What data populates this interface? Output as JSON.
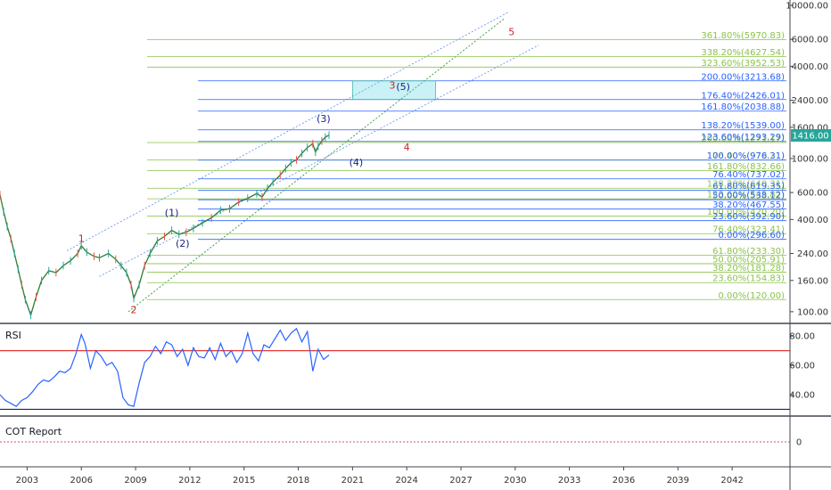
{
  "chart_data": [
    {
      "type": "line",
      "scale": "log",
      "ylim": [
        85,
        10000
      ],
      "xlim": [
        2001.5,
        2045.2
      ],
      "x_ticks": [
        "2003",
        "2006",
        "2009",
        "2012",
        "2015",
        "2018",
        "2021",
        "2024",
        "2027",
        "2030",
        "2033",
        "2036",
        "2039",
        "2042"
      ],
      "x_tick_values": [
        2003,
        2006,
        2009,
        2012,
        2015,
        2018,
        2021,
        2024,
        2027,
        2030,
        2033,
        2036,
        2039,
        2042
      ],
      "y_ticks": [
        "10000.00",
        "6000.00",
        "4000.00",
        "2400.00",
        "1600.00",
        "1000.00",
        "600.00",
        "400.00",
        "240.00",
        "160.00",
        "100.00"
      ],
      "y_tick_values": [
        10000,
        6000,
        4000,
        2400,
        1600,
        1000,
        600,
        400,
        240,
        160,
        100
      ],
      "last_price": {
        "label": "1416.00",
        "value": 1416,
        "color": "#26a69a"
      },
      "series": [
        {
          "x": [
            2001.5,
            2001.7,
            2001.9,
            2002.1,
            2002.3,
            2002.5,
            2002.7,
            2002.9,
            2003.2,
            2003.5,
            2003.8,
            2004.2,
            2004.6,
            2005.0,
            2005.4,
            2005.8,
            2006.0,
            2006.3,
            2006.7,
            2007.0,
            2007.5,
            2007.9,
            2008.2,
            2008.5,
            2008.75,
            2008.9,
            2009.2,
            2009.5,
            2009.8,
            2010.2,
            2010.6,
            2011.0,
            2011.4,
            2011.8,
            2012.2,
            2012.7,
            2013.2,
            2013.7,
            2014.2,
            2014.7,
            2015.2,
            2015.7,
            2016.0,
            2016.3,
            2016.6,
            2017.0,
            2017.3,
            2017.6,
            2017.9,
            2018.2,
            2018.5,
            2018.8,
            2018.95,
            2019.1,
            2019.3,
            2019.5,
            2019.7
          ],
          "values": [
            580,
            450,
            360,
            300,
            240,
            190,
            150,
            120,
            95,
            125,
            160,
            185,
            180,
            200,
            215,
            240,
            270,
            245,
            230,
            225,
            240,
            220,
            200,
            180,
            150,
            122,
            150,
            200,
            240,
            290,
            310,
            340,
            320,
            330,
            350,
            380,
            410,
            460,
            470,
            520,
            550,
            590,
            560,
            640,
            700,
            780,
            860,
            940,
            980,
            1080,
            1180,
            1250,
            1100,
            1200,
            1300,
            1380,
            1420
          ],
          "color": "#2e7d32"
        }
      ],
      "fib_levels_left": [
        {
          "label": "361.80%(5970.83)",
          "value": 5970.83,
          "color": "#8bc34a"
        },
        {
          "label": "338.20%(4627.54)",
          "value": 4627.54,
          "color": "#8bc34a"
        },
        {
          "label": "323.60%(3952.53)",
          "value": 3952.53,
          "color": "#8bc34a"
        },
        {
          "label": "200.00%(1271.17)",
          "value": 1271.17,
          "color": "#8bc34a"
        },
        {
          "label": "176.40%(979.21)",
          "value": 979.21,
          "color": "#8bc34a"
        },
        {
          "label": "161.80%(832.66)",
          "value": 832.66,
          "color": "#8bc34a"
        },
        {
          "label": "138.20%(640.31)",
          "value": 640.31,
          "color": "#8bc34a"
        },
        {
          "label": "123.60%(545.82)",
          "value": 545.82,
          "color": "#8bc34a"
        },
        {
          "label": "100.00%(420.20)",
          "value": 420.2,
          "color": "#8bc34a"
        },
        {
          "label": "76.40%(323.41)",
          "value": 323.41,
          "color": "#8bc34a"
        },
        {
          "label": "61.80%(233.30)",
          "value": 233.3,
          "color": "#8bc34a"
        },
        {
          "label": "50.00%(205.91)",
          "value": 205.91,
          "color": "#8bc34a"
        },
        {
          "label": "38.20%(181.28)",
          "value": 181.28,
          "color": "#8bc34a"
        },
        {
          "label": "23.60%(154.83)",
          "value": 154.83,
          "color": "#8bc34a"
        },
        {
          "label": "0.00%(120.00)",
          "value": 120.0,
          "color": "#8bc34a"
        }
      ],
      "fib_levels_right": [
        {
          "label": "200.00%(3213.68)",
          "value": 3213.68,
          "color": "#2962ff"
        },
        {
          "label": "176.40%(2426.01)",
          "value": 2426.01,
          "color": "#2962ff"
        },
        {
          "label": "161.80%(2038.88)",
          "value": 2038.88,
          "color": "#2962ff"
        },
        {
          "label": "138.20%(1539.00)",
          "value": 1539.0,
          "color": "#2962ff"
        },
        {
          "label": "123.60%(1293.29)",
          "value": 1293.29,
          "color": "#2962ff"
        },
        {
          "label": "100.00%(976.31)",
          "value": 976.31,
          "color": "#2962ff"
        },
        {
          "label": "76.40%(737.02)",
          "value": 737.02,
          "color": "#2962ff"
        },
        {
          "label": "61.80%(619.35)",
          "value": 619.35,
          "color": "#2962ff"
        },
        {
          "label": "50.00%(538.12)",
          "value": 538.12,
          "color": "#2962ff"
        },
        {
          "label": "38.20%(467.55)",
          "value": 467.55,
          "color": "#2962ff"
        },
        {
          "label": "23.60%(392.90)",
          "value": 392.9,
          "color": "#2962ff"
        },
        {
          "label": "0.00%(296.60)",
          "value": 296.6,
          "color": "#2962ff"
        }
      ],
      "target_box": {
        "x_range": [
          2021.0,
          2025.6
        ],
        "y_range": [
          2426.01,
          3213.68
        ],
        "color": "#4dd0e1"
      },
      "wave_labels": [
        {
          "label": "1",
          "x": 2006.0,
          "y": 285,
          "color": "#c62828"
        },
        {
          "label": "2",
          "x": 2008.9,
          "y": 98,
          "color": "#c62828"
        },
        {
          "label": "3",
          "x": 2023.2,
          "y": 2850,
          "color": "#c62828"
        },
        {
          "label": "4",
          "x": 2024.0,
          "y": 1130,
          "color": "#c62828"
        },
        {
          "label": "5",
          "x": 2029.8,
          "y": 6400,
          "color": "#c62828"
        },
        {
          "label": "(1)",
          "x": 2011.0,
          "y": 420,
          "color": "#1a237e"
        },
        {
          "label": "(2)",
          "x": 2011.6,
          "y": 265,
          "color": "#1a237e"
        },
        {
          "label": "(3)",
          "x": 2019.4,
          "y": 1730,
          "color": "#1a237e"
        },
        {
          "label": "(4)",
          "x": 2021.2,
          "y": 900,
          "color": "#1a237e"
        },
        {
          "label": "(5)",
          "x": 2023.8,
          "y": 2800,
          "color": "#1a237e"
        }
      ]
    },
    {
      "type": "line",
      "title": "RSI",
      "ylim": [
        26,
        88
      ],
      "y_ticks": [
        "80.00",
        "60.00",
        "40.00"
      ],
      "y_tick_values": [
        80,
        60,
        40
      ],
      "bands": [
        {
          "value": 70,
          "color": "#e53935"
        },
        {
          "value": 30,
          "color": "#1a237e"
        }
      ],
      "series": [
        {
          "x": [
            2001.5,
            2001.8,
            2002.1,
            2002.4,
            2002.7,
            2003.0,
            2003.3,
            2003.6,
            2003.9,
            2004.2,
            2004.5,
            2004.8,
            2005.1,
            2005.4,
            2005.7,
            2006.0,
            2006.2,
            2006.5,
            2006.8,
            2007.1,
            2007.4,
            2007.7,
            2008.0,
            2008.3,
            2008.6,
            2008.9,
            2009.2,
            2009.5,
            2009.8,
            2010.1,
            2010.4,
            2010.7,
            2011.0,
            2011.3,
            2011.6,
            2011.9,
            2012.2,
            2012.5,
            2012.8,
            2013.1,
            2013.4,
            2013.7,
            2014.0,
            2014.3,
            2014.6,
            2014.9,
            2015.2,
            2015.5,
            2015.8,
            2016.1,
            2016.4,
            2016.7,
            2017.0,
            2017.3,
            2017.6,
            2017.9,
            2018.2,
            2018.5,
            2018.8,
            2019.1,
            2019.4,
            2019.7
          ],
          "values": [
            40,
            36,
            34,
            32,
            36,
            38,
            42,
            47,
            50,
            49,
            52,
            56,
            55,
            58,
            68,
            81,
            75,
            58,
            70,
            66,
            60,
            62,
            56,
            38,
            33,
            32,
            48,
            62,
            66,
            73,
            68,
            76,
            74,
            66,
            71,
            60,
            72,
            66,
            65,
            72,
            64,
            75,
            66,
            70,
            62,
            68,
            82,
            68,
            63,
            74,
            72,
            78,
            84,
            77,
            82,
            85,
            76,
            83,
            56,
            71,
            64,
            67
          ],
          "color": "#2962ff"
        }
      ]
    },
    {
      "type": "line",
      "title": "COT Report",
      "y_ticks": [
        "0"
      ],
      "y_tick_values": [
        0
      ],
      "series": []
    }
  ]
}
